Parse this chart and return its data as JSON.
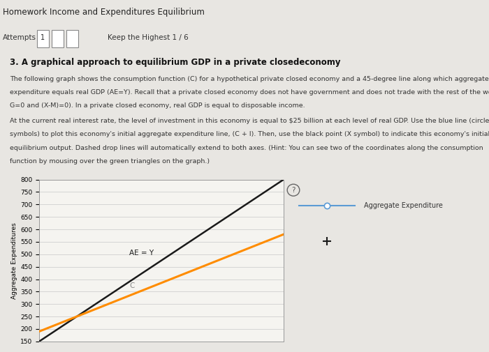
{
  "title_page": "Homework Income and Expenditures Equilibrium",
  "attempts_line": "Attempts   1               Keep the Highest 1 / 6",
  "question_title": "3. A graphical approach to equilibrium GDP in a private closedeconomy",
  "p1_lines": [
    "The following graph shows the consumption function (C) for a hypothetical private closed economy and a 45-degree line along which aggregate",
    "expenditure equals real GDP (AE=Y). Recall that a private closed economy does not have government and does not trade with the rest of the world (so",
    "G=0 and (X-M)=0). In a private closed economy, real GDP is equal to disposable income."
  ],
  "p2_lines": [
    "At the current real interest rate, the level of investment in this economy is equal to $25 billion at each level of real GDP. Use the blue line (circle",
    "symbols) to plot this economy's initial aggregate expenditure line, (C + I). Then, use the black point (X symbol) to indicate this economy's initial",
    "equilibrium output. Dashed drop lines will automatically extend to both axes. (Hint: You can see two of the coordinates along the consumption",
    "function by mousing over the green triangles on the graph.)"
  ],
  "ylabel": "Aggregate Expenditures",
  "ylim": [
    150,
    800
  ],
  "xlim": [
    150,
    800
  ],
  "yticks": [
    150,
    200,
    250,
    300,
    350,
    400,
    450,
    500,
    550,
    600,
    650,
    700,
    750,
    800
  ],
  "ae_y_color": "#1a1a1a",
  "ae_y_label": "AE = Y",
  "c_line_color": "#FF8C00",
  "c_line_label": "C",
  "legend_line_color": "#5B9BD5",
  "legend_label": "Aggregate Expenditure",
  "plus_marker_color": "#1a1a1a",
  "bg_color": "#e8e6e2",
  "plot_bg_color": "#f5f4f0",
  "grid_color": "#c8c8c8",
  "c_intercept": 100,
  "c_slope": 0.6,
  "figure_width": 7.0,
  "figure_height": 5.05,
  "title_bg_color": "#d0cec9",
  "attempts_bg_color": "#e0deda"
}
